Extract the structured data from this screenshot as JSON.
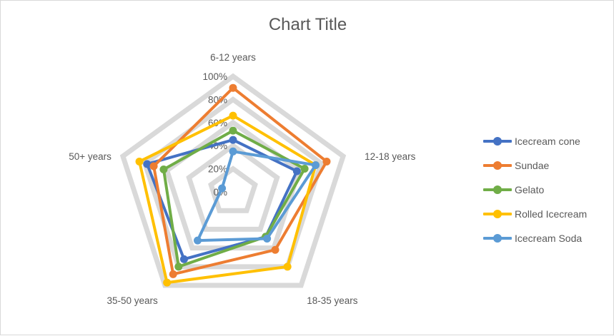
{
  "chart_data": {
    "type": "radar",
    "title": "Chart Title",
    "categories": [
      "6-12 years",
      "12-18 years",
      "18-35 years",
      "35-50 years",
      "50+ years"
    ],
    "rlim": [
      0,
      100
    ],
    "r_ticks": [
      "0%",
      "20%",
      "40%",
      "60%",
      "80%",
      "100%"
    ],
    "r_tick_values": [
      0,
      20,
      40,
      60,
      80,
      100
    ],
    "legend_position": "right",
    "series": [
      {
        "name": "Icecream cone",
        "color": "#4472c4",
        "values": [
          45,
          58,
          48,
          72,
          78
        ]
      },
      {
        "name": "Sundae",
        "color": "#ed7d31",
        "values": [
          90,
          85,
          62,
          88,
          72
        ]
      },
      {
        "name": "Gelato",
        "color": "#70ad47",
        "values": [
          53,
          65,
          48,
          80,
          63
        ]
      },
      {
        "name": "Rolled Icecream",
        "color": "#ffc000",
        "values": [
          66,
          75,
          80,
          97,
          85
        ]
      },
      {
        "name": "Icecream Soda",
        "color": "#5b9bd5",
        "values": [
          35,
          75,
          50,
          52,
          10
        ]
      }
    ]
  }
}
